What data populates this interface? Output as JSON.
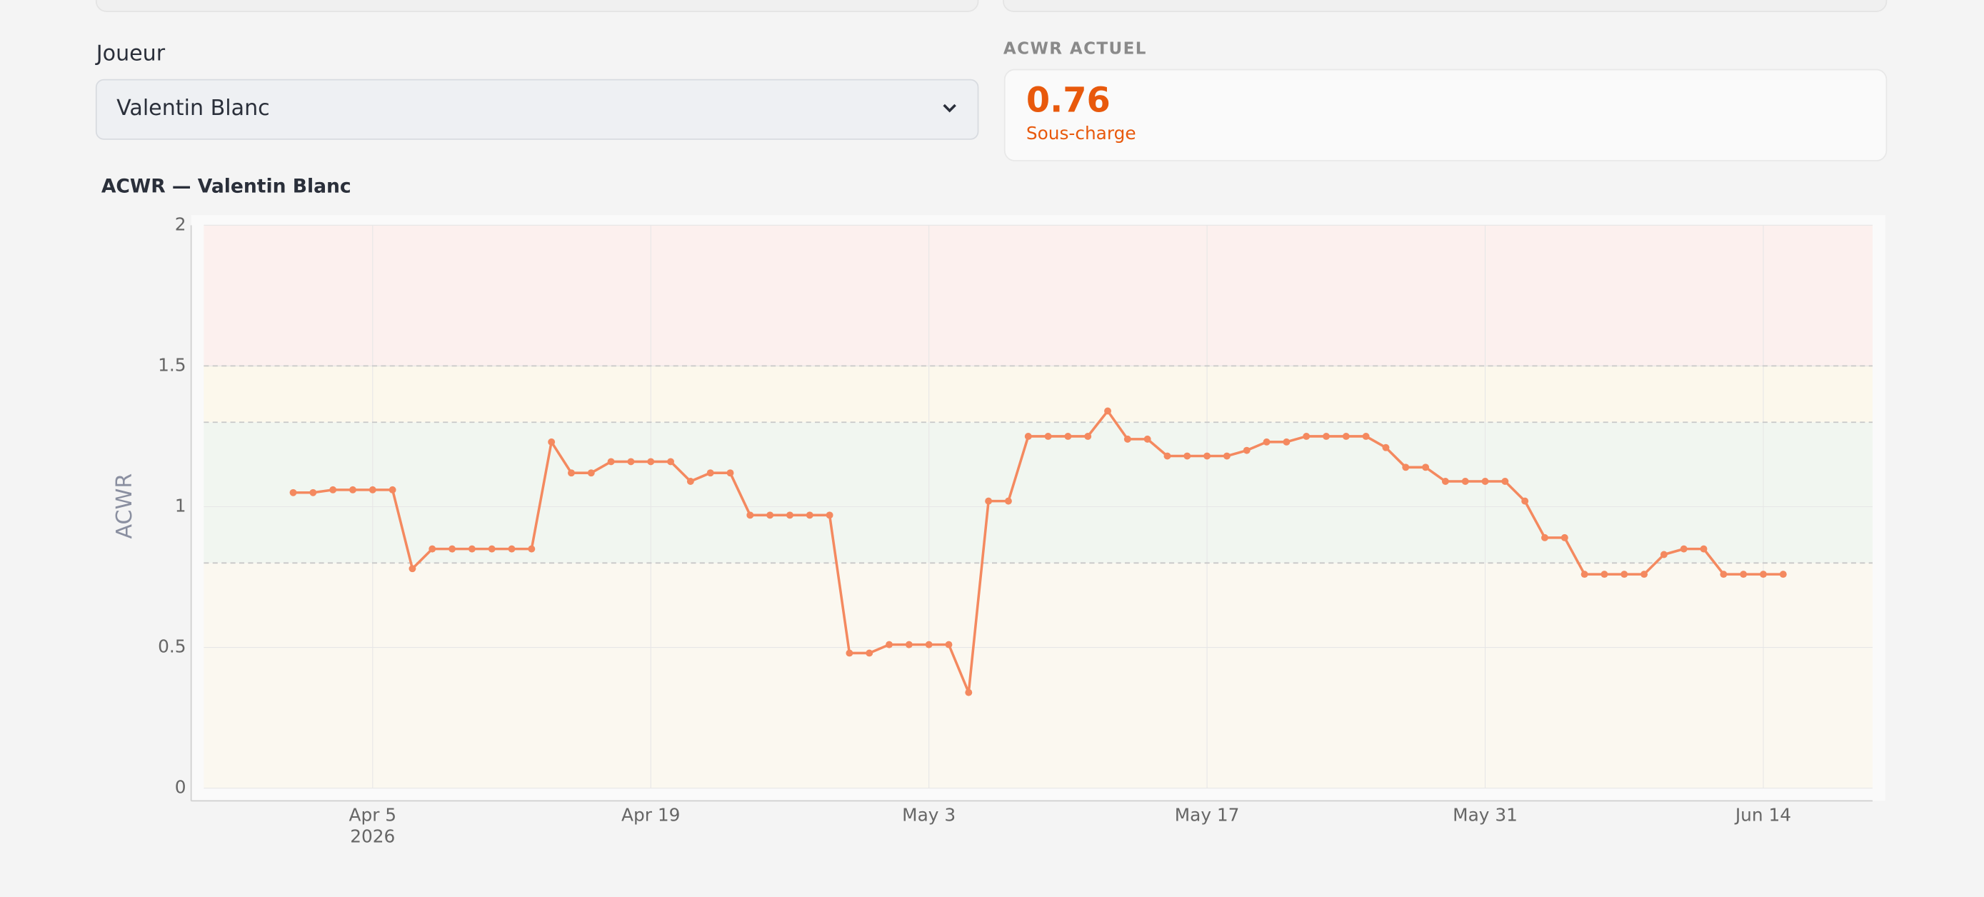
{
  "page": {
    "player_label": "Joueur",
    "player_selected": "Valentin Blanc",
    "current": {
      "label": "ACWR ACTUEL",
      "value": "0.76",
      "status": "Sous-charge"
    }
  },
  "chart_data": {
    "type": "line",
    "title": "ACWR — Valentin Blanc",
    "y_label": "ACWR",
    "x": [
      "2026-04-01",
      "2026-04-02",
      "2026-04-03",
      "2026-04-04",
      "2026-04-05",
      "2026-04-06",
      "2026-04-07",
      "2026-04-08",
      "2026-04-09",
      "2026-04-10",
      "2026-04-11",
      "2026-04-12",
      "2026-04-13",
      "2026-04-14",
      "2026-04-15",
      "2026-04-16",
      "2026-04-17",
      "2026-04-18",
      "2026-04-19",
      "2026-04-20",
      "2026-04-21",
      "2026-04-22",
      "2026-04-23",
      "2026-04-24",
      "2026-04-25",
      "2026-04-26",
      "2026-04-27",
      "2026-04-28",
      "2026-04-29",
      "2026-04-30",
      "2026-05-01",
      "2026-05-02",
      "2026-05-03",
      "2026-05-04",
      "2026-05-05",
      "2026-05-06",
      "2026-05-07",
      "2026-05-08",
      "2026-05-09",
      "2026-05-10",
      "2026-05-11",
      "2026-05-12",
      "2026-05-13",
      "2026-05-14",
      "2026-05-15",
      "2026-05-16",
      "2026-05-17",
      "2026-05-18",
      "2026-05-19",
      "2026-05-20",
      "2026-05-21",
      "2026-05-22",
      "2026-05-23",
      "2026-05-24",
      "2026-05-25",
      "2026-05-26",
      "2026-05-27",
      "2026-05-28",
      "2026-05-29",
      "2026-05-30",
      "2026-05-31",
      "2026-06-01",
      "2026-06-02",
      "2026-06-03",
      "2026-06-04",
      "2026-06-05",
      "2026-06-06",
      "2026-06-07",
      "2026-06-08",
      "2026-06-09",
      "2026-06-10",
      "2026-06-11",
      "2026-06-12",
      "2026-06-13",
      "2026-06-14",
      "2026-06-15"
    ],
    "values": [
      1.05,
      1.05,
      1.06,
      1.06,
      1.06,
      1.06,
      0.78,
      0.85,
      0.85,
      0.85,
      0.85,
      0.85,
      0.85,
      1.23,
      1.12,
      1.12,
      1.16,
      1.16,
      1.16,
      1.16,
      1.09,
      1.12,
      1.12,
      0.97,
      0.97,
      0.97,
      0.97,
      0.97,
      0.48,
      0.48,
      0.51,
      0.51,
      0.51,
      0.51,
      0.34,
      1.02,
      1.02,
      1.25,
      1.25,
      1.25,
      1.25,
      1.34,
      1.24,
      1.24,
      1.18,
      1.18,
      1.18,
      1.18,
      1.2,
      1.23,
      1.23,
      1.25,
      1.25,
      1.25,
      1.25,
      1.21,
      1.14,
      1.14,
      1.09,
      1.09,
      1.09,
      1.09,
      1.02,
      0.89,
      0.89,
      0.76,
      0.76,
      0.76,
      0.76,
      0.83,
      0.85,
      0.85,
      0.76,
      0.76,
      0.76,
      0.76
    ],
    "color": "#f4895f",
    "xlim": [
      "2026-03-27T12:00:00Z",
      "2026-06-19T12:00:00Z"
    ],
    "xticks": [
      {
        "value": "2026-04-05",
        "label": "Apr 5",
        "sublabel": "2026"
      },
      {
        "value": "2026-04-19",
        "label": "Apr 19"
      },
      {
        "value": "2026-05-03",
        "label": "May 3"
      },
      {
        "value": "2026-05-17",
        "label": "May 17"
      },
      {
        "value": "2026-05-31",
        "label": "May 31"
      },
      {
        "value": "2026-06-14",
        "label": "Jun 14"
      }
    ],
    "ylim": [
      0,
      2
    ],
    "yticks": [
      0,
      0.5,
      1,
      1.5,
      2
    ],
    "grid": true,
    "zones": [
      {
        "from": 0,
        "to": 0.8,
        "color": "#fbf8f0"
      },
      {
        "from": 0.8,
        "to": 1.3,
        "color": "#f1f6f0"
      },
      {
        "from": 1.3,
        "to": 1.5,
        "color": "#fcf8ec"
      },
      {
        "from": 1.5,
        "to": 2,
        "color": "#fcf0ee"
      }
    ],
    "thresholds": [
      0.8,
      1.3,
      1.5
    ]
  }
}
